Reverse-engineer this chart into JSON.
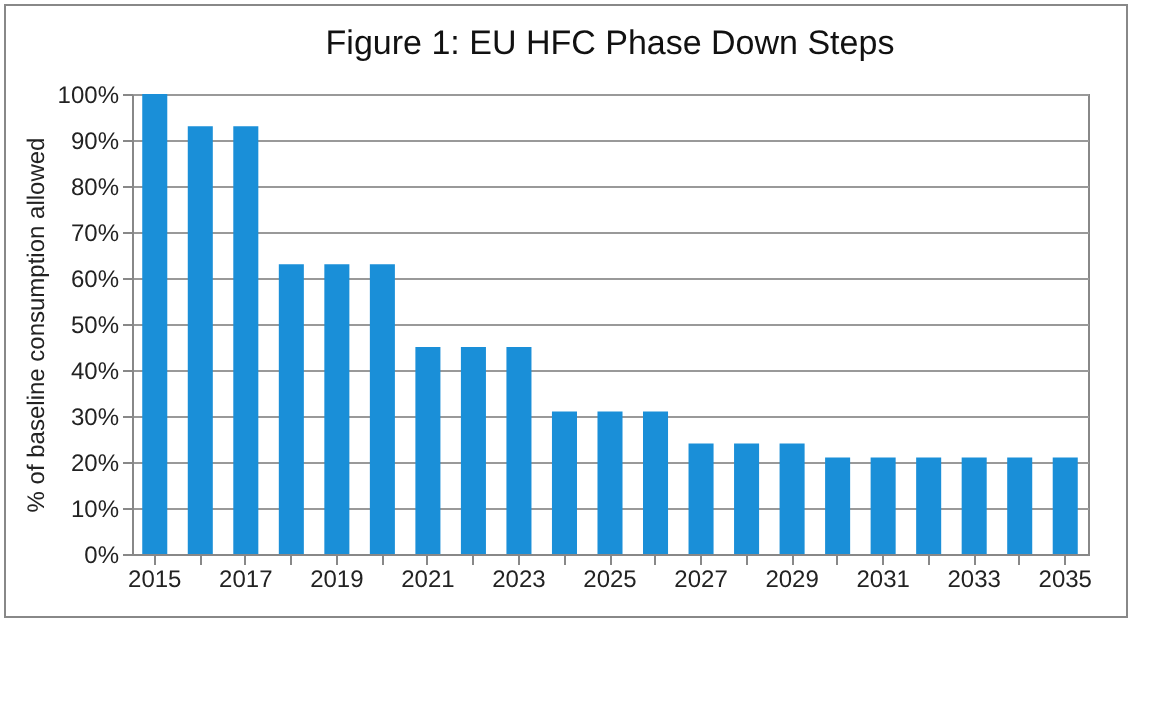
{
  "chart_data": {
    "type": "bar",
    "title": "Figure 1: EU HFC Phase Down Steps",
    "ylabel": "% of baseline consumption allowed",
    "categories": [
      "2015",
      null,
      "2017",
      null,
      "2019",
      null,
      "2021",
      null,
      "2023",
      null,
      "2025",
      null,
      "2027",
      null,
      "2029",
      null,
      "2031",
      null,
      "2033",
      null,
      "2035"
    ],
    "values": [
      100,
      93,
      93,
      63,
      63,
      63,
      45,
      45,
      45,
      31,
      31,
      31,
      24,
      24,
      24,
      21,
      21,
      21,
      21,
      21,
      21
    ],
    "color": "#1a8fd8",
    "ylim": [
      0,
      100
    ],
    "yticks": [
      {
        "value": 0,
        "label": "0%"
      },
      {
        "value": 10,
        "label": "10%"
      },
      {
        "value": 20,
        "label": "20%"
      },
      {
        "value": 30,
        "label": "30%"
      },
      {
        "value": 40,
        "label": "40%"
      },
      {
        "value": 50,
        "label": "50%"
      },
      {
        "value": 60,
        "label": "60%"
      },
      {
        "value": 70,
        "label": "70%"
      },
      {
        "value": 80,
        "label": "80%"
      },
      {
        "value": 90,
        "label": "90%"
      },
      {
        "value": 100,
        "label": "100%"
      }
    ],
    "grid": "y"
  }
}
